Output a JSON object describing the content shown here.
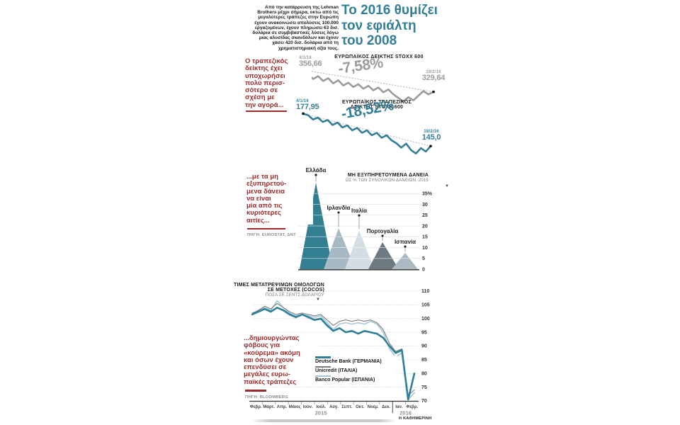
{
  "page": {
    "credit": "Η ΚΑΘΗΜΕΡΙΝΗ",
    "down_marker": "▼"
  },
  "colors": {
    "teal": "#337d96",
    "red": "#9e2b2b",
    "gray_line": "#9b9b9b",
    "dark_gray_line": "#7d7d7d",
    "light_blue_line": "#a5c6d6"
  },
  "header": {
    "intro": "Από την κατάρρευση της Lehman Brothers μέχρι σήμερα, οκτώ από τις μεγαλύτερες τράπεζες στην Ευρώπη έχουν ανακοινώσει απολύσεις 100.000 εργαζομένων, έχουν πληρώσει 63 δισ. δολάρια σε συμβιβαστικές λύσεις λόγω μιας αλυσίδας σκανδάλων και έχουν χάσει 420 δισ. δολάρια από τη χρηματιστηριακή αξία τους.",
    "title": "Το 2016 θυμίζει\nτον εφιάλτη\nτου 2008"
  },
  "annotations": {
    "note1": "Ο τραπεζικός\nδείκτης έχει\nυποχωρήσει\nπολύ περισ-\nσότερο σε\nσχέση με\nτην αγορά...",
    "note2": "...με τα μη\nεξυπηρετού-\nμενα δάνεια\nνα είναι\nμία από τις\nκυριότερες\nαιτίες...",
    "note2_source": "ΠΗΓΗ: EUROSTAT, ΔΝΤ",
    "note3": "...δημιουργώντας\nφόβους για\n«κούρεμα» ακόμη\nκαι όσων έχουν\nεπενδύσει σε\nμεγάλες ευρω-\nπαϊκές τράπεζες",
    "note3_source": "ΠΗΓΗ: BLOOMBERG"
  },
  "chart_data": [
    {
      "id": "stoxx-600",
      "type": "line",
      "title": "ΕΥΡΩΠΑΪΚΟΣ ΔΕΙΚΤΗΣ STOXX 600",
      "start": {
        "date": "4/1/16",
        "label": "356,66",
        "value": 356.66
      },
      "end": {
        "date": "18/2/16",
        "label": "329,64",
        "value": 329.64
      },
      "change_label": "-7,58%",
      "change_pct": -7.58,
      "ylim": [
        310,
        360
      ],
      "values": [
        356.66,
        351,
        345.5,
        349,
        343,
        346.5,
        340,
        344,
        337.5,
        341,
        335.5,
        339,
        333.5,
        337,
        331.5,
        335,
        329,
        332.5,
        326.5,
        322,
        317.5,
        323,
        319,
        325,
        330.5,
        326.5,
        329.64
      ]
    },
    {
      "id": "stoxx-600-banks",
      "type": "line",
      "title": "ΕΥΡΩΠΑΪΚΟΣ ΤΡΑΠΕΖΙΚΟΣ\nΔΕΙΚΤΗΣ STOXX 600",
      "start": {
        "date": "4/1/16",
        "label": "177,95",
        "value": 177.95
      },
      "end": {
        "date": "18/2/16",
        "label": "145,0",
        "value": 145.0
      },
      "change_label": "-18,52%",
      "change_pct": -18.52,
      "ylim": [
        133,
        179
      ],
      "values": [
        177.95,
        176.5,
        172,
        174,
        169.5,
        171.5,
        166.5,
        169,
        164,
        166,
        161,
        163.5,
        158.5,
        161,
        156,
        158.5,
        153.5,
        156,
        151,
        148,
        143.5,
        147.5,
        141,
        137.5,
        143,
        139.5,
        145
      ]
    },
    {
      "id": "non-performing-loans",
      "type": "area",
      "title": "ΜΗ ΕΞΥΠΗΡΕΤΟΥΜΕΝΑ ΔΑΝΕΙΑ",
      "subtitle": "ΩΣ % ΤΩΝ ΣΥΝΟΛΙΚΩΝ ΔΑΝΕΙΩΝ, 2015",
      "categories": [
        "Ελλάδα",
        "Ιρλανδία",
        "Ιταλία",
        "Πορτογαλία",
        "Ισπανία"
      ],
      "values": [
        40,
        19,
        18,
        12.5,
        7.5
      ],
      "colors": [
        "#337e90",
        "#a7bac3",
        "#d3dde2",
        "#6d7a81",
        "#aab9c2"
      ],
      "ytick_labels": [
        "35%",
        "30",
        "25",
        "20",
        "15",
        "10",
        "5",
        "0"
      ],
      "ytick_values": [
        35,
        30,
        25,
        20,
        15,
        10,
        5,
        0
      ],
      "ylim": [
        0,
        40
      ]
    },
    {
      "id": "cocos-prices",
      "type": "line",
      "title": "ΤΙΜΕΣ ΜΕΤΑΤΡΕΨΙΜΩΝ ΟΜΟΛΟΓΩΝ\nΣΕ ΜΕΤΟΧΕΣ (COCOS)",
      "subtitle": "ΠΟΣΑ ΣΕ ΣΕΝΤΣ ΔΟΛΑΡΙΟΥ",
      "months": [
        "Φεβρ.",
        "Μάρτ.",
        "Απρ.",
        "Μάιος",
        "Ιούν.",
        "Ιούλ.",
        "Αύγ.",
        "Σεπτ.",
        "Οκτ.",
        "Νοέμ.",
        "Δεκ.",
        "Ιαν.",
        "Φεβρ."
      ],
      "years": [
        "2015",
        "2016"
      ],
      "yticks": [
        110,
        105,
        100,
        95,
        90,
        85,
        80,
        75,
        70
      ],
      "ylim": [
        70,
        110
      ],
      "series": [
        {
          "name": "Deutsche Bank (ΓΕΡΜΑΝΙΑ)",
          "color": "#2f7f99",
          "values": [
            101.5,
            102.5,
            103.5,
            102.5,
            104,
            103,
            101.5,
            100.5,
            101.5,
            100.5,
            99.5,
            100,
            97.5,
            95.5,
            96.5,
            95,
            95.5,
            94.5,
            95.5,
            95,
            94.5,
            93,
            90,
            87.5,
            88.5,
            70.5,
            80
          ]
        },
        {
          "name": "Unicredit (ΙΤΑΛΙΑ)",
          "color": "#7d7d7d",
          "values": [
            102,
            103,
            104.5,
            103.5,
            105.5,
            104,
            102.5,
            101.5,
            102,
            101.5,
            101,
            101.5,
            99.5,
            97.5,
            99,
            99.5,
            99,
            99.5,
            99,
            99.5,
            98.5,
            96,
            91,
            88,
            89,
            72,
            74
          ]
        },
        {
          "name": "Banco Popular (ΙΣΠΑΝΙΑ)",
          "color": "#a5c6d6",
          "values": [
            101.5,
            103,
            104,
            103,
            106.5,
            104,
            102,
            101,
            101.5,
            101,
            100.5,
            101,
            98.5,
            96,
            98,
            98.5,
            98,
            98.5,
            98,
            99,
            98,
            95,
            89,
            86,
            87.5,
            70.5,
            73
          ]
        }
      ]
    }
  ]
}
